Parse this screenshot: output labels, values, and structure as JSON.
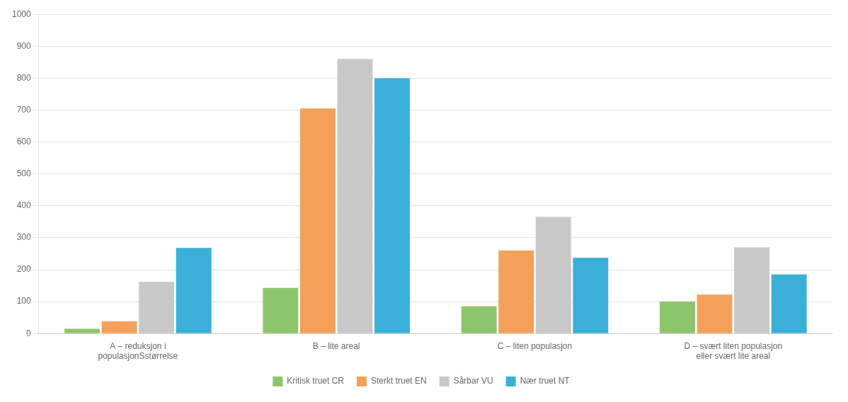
{
  "chart_data": {
    "type": "bar",
    "categories": [
      "A – reduksjon i\npopulasjonSstørrelse",
      "B – lite areal",
      "C – liten populasjon",
      "D – svært liten populasjon\neller svært lite areal"
    ],
    "series": [
      {
        "name": "Kritisk truet CR",
        "color": "#8DC56C",
        "values": [
          15,
          143,
          85,
          100
        ]
      },
      {
        "name": "Sterkt truet EN",
        "color": "#F5A05A",
        "values": [
          38,
          705,
          260,
          122
        ]
      },
      {
        "name": "Sårbar VU",
        "color": "#C8C8C8",
        "values": [
          162,
          860,
          365,
          270
        ]
      },
      {
        "name": "Nær truet NT",
        "color": "#3AB0D8",
        "values": [
          268,
          800,
          237,
          185
        ]
      }
    ],
    "ylim": [
      0,
      1000
    ],
    "yticks": [
      0,
      100,
      200,
      300,
      400,
      500,
      600,
      700,
      800,
      900,
      1000
    ],
    "grid": true,
    "legend": "bottom"
  }
}
